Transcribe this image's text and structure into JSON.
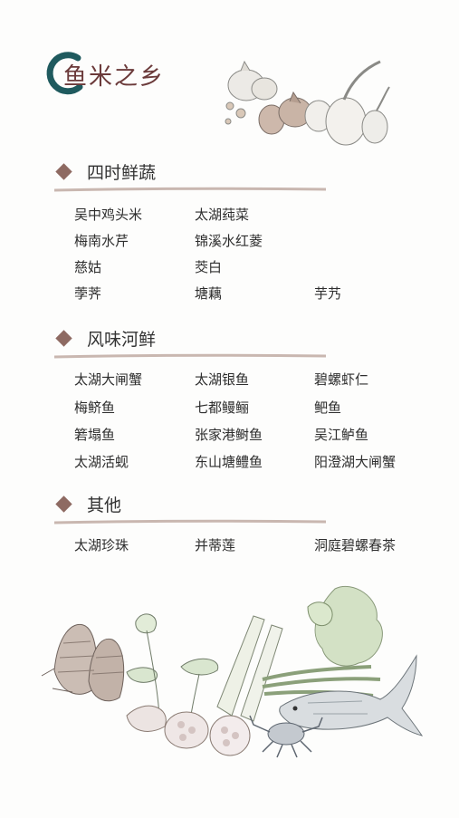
{
  "title": "鱼米之乡",
  "sections": [
    {
      "title": "四时鲜蔬",
      "items": [
        "吴中鸡头米",
        "太湖莼菜",
        "梅南水芹",
        "锦溪水红菱",
        "慈姑",
        "茭白",
        "荸荠",
        "塘藕",
        "芋艿"
      ]
    },
    {
      "title": "风味河鲜",
      "items": [
        "太湖大闸蟹",
        "太湖银鱼",
        "碧螺虾仁",
        "梅鲚鱼",
        "七都鳗鲡",
        "鲃鱼",
        "箬塌鱼",
        "张家港鲥鱼",
        "吴江鲈鱼",
        "太湖活蚬",
        "东山塘鳢鱼",
        "阳澄湖大闸蟹"
      ]
    },
    {
      "title": "其他",
      "items": [
        "太湖珍珠",
        "并蒂莲",
        "洞庭碧螺春茶"
      ]
    }
  ],
  "colors": {
    "accent": "#6b3a3a",
    "diamond": "#8e6a62",
    "ring": "#1f5a5e",
    "brush": "#c9b7b0"
  }
}
